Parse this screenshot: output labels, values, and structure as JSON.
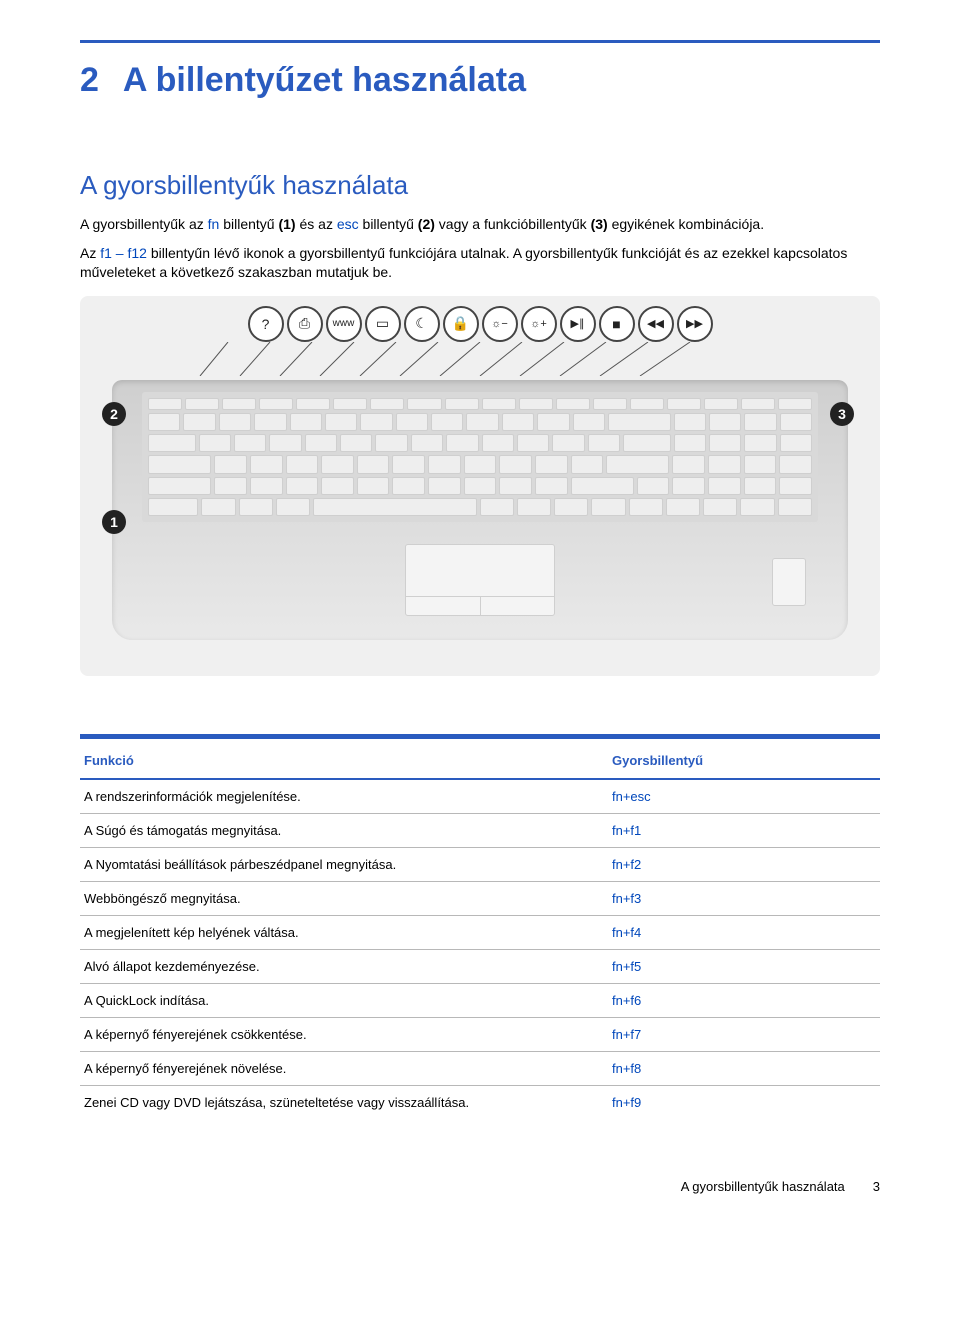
{
  "chapter": {
    "number": "2",
    "title": "A billentyűzet használata"
  },
  "section": {
    "title": "A gyorsbillentyűk használata"
  },
  "paragraphs": {
    "p1_a": "A gyorsbillentyűk az ",
    "p1_fn": "fn",
    "p1_b": " billentyű ",
    "p1_c": "(1)",
    "p1_d": " és az ",
    "p1_esc": "esc",
    "p1_e": " billentyű ",
    "p1_f": "(2)",
    "p1_g": " vagy a funkcióbillentyűk ",
    "p1_h": "(3)",
    "p1_i": " egyikének kombinációja.",
    "p2_a": "Az ",
    "p2_range": "f1 – f12",
    "p2_b": " billentyűn lévő ikonok a gyorsbillentyű funkciójára utalnak. A gyorsbillentyűk funkcióját és az ezekkel kapcsolatos műveleteket a következő szakaszban mutatjuk be."
  },
  "illustration": {
    "callouts": {
      "c1": "1",
      "c2": "2",
      "c3": "3"
    },
    "icons": [
      "?",
      "⎙",
      "www",
      "▭",
      "☾",
      "🔒",
      "☼−",
      "☼+",
      "▶∥",
      "■",
      "◀◀",
      "▶▶"
    ]
  },
  "table": {
    "headers": {
      "function": "Funkció",
      "hotkey": "Gyorsbillentyű"
    },
    "rows": [
      {
        "fn": "A rendszerinformációk megjelenítése.",
        "hk": "fn+esc"
      },
      {
        "fn": "A Súgó és támogatás megnyitása.",
        "hk": "fn+f1"
      },
      {
        "fn": "A Nyomtatási beállítások párbeszédpanel megnyitása.",
        "hk": "fn+f2"
      },
      {
        "fn": "Webböngésző megnyitása.",
        "hk": "fn+f3"
      },
      {
        "fn": "A megjelenített kép helyének váltása.",
        "hk": "fn+f4"
      },
      {
        "fn": "Alvó állapot kezdeményezése.",
        "hk": "fn+f5"
      },
      {
        "fn": "A QuickLock indítása.",
        "hk": "fn+f6"
      },
      {
        "fn": "A képernyő fényerejének csökkentése.",
        "hk": "fn+f7"
      },
      {
        "fn": "A képernyő fényerejének növelése.",
        "hk": "fn+f8"
      },
      {
        "fn": "Zenei CD vagy DVD lejátszása, szüneteltetése vagy visszaállítása.",
        "hk": "fn+f9"
      }
    ]
  },
  "footer": {
    "label": "A gyorsbillentyűk használata",
    "page": "3"
  },
  "colors": {
    "brand_blue": "#2a5bbf",
    "link_blue": "#0047bb",
    "rule_gray": "#b8b8b8"
  }
}
